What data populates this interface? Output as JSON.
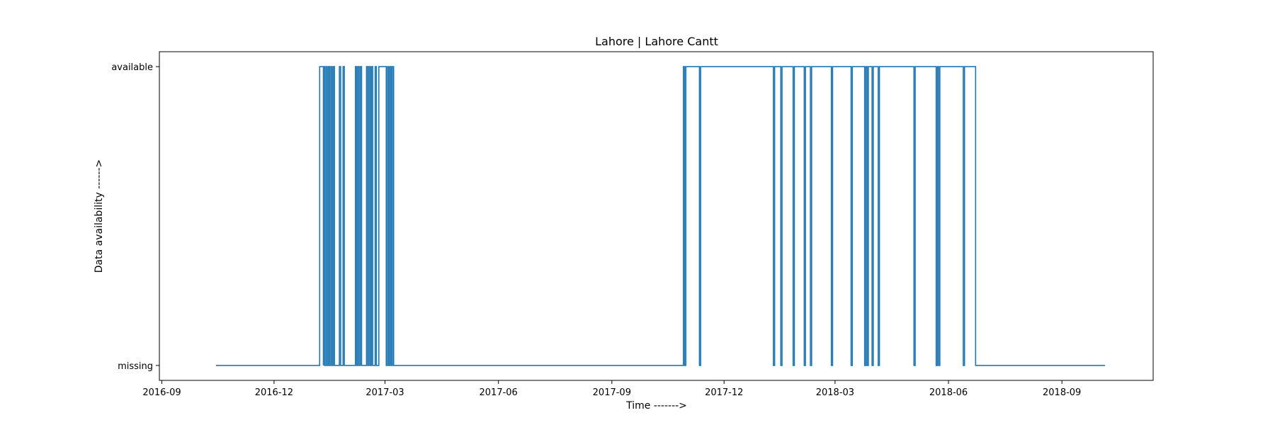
{
  "chart_data": {
    "type": "line",
    "title": "Lahore | Lahore Cantt",
    "xlabel": "Time ------->",
    "ylabel": "Data availability ------>",
    "x_ticks": [
      "2016-09-01",
      "2016-12-01",
      "2017-03-01",
      "2017-06-01",
      "2017-09-01",
      "2017-12-01",
      "2018-03-01",
      "2018-06-01",
      "2018-09-01"
    ],
    "x_tick_labels": [
      "2016-09",
      "2016-12",
      "2017-03",
      "2017-06",
      "2017-09",
      "2017-12",
      "2018-03",
      "2018-06",
      "2018-09"
    ],
    "y_ticks": [
      0,
      1
    ],
    "y_tick_labels": [
      "missing",
      "available"
    ],
    "xlim": [
      "2016-08-30",
      "2018-11-14"
    ],
    "ylim": [
      -0.05,
      1.05
    ],
    "grid": false,
    "series": [
      {
        "color": "#1f77b4",
        "step_points": [
          [
            "2016-10-15",
            0
          ],
          [
            "2017-01-07",
            1
          ],
          [
            "2017-01-10",
            0
          ],
          [
            "2017-01-10",
            1
          ],
          [
            "2017-01-11",
            0
          ],
          [
            "2017-01-12",
            1
          ],
          [
            "2017-01-13",
            0
          ],
          [
            "2017-01-14",
            1
          ],
          [
            "2017-01-15",
            0
          ],
          [
            "2017-01-16",
            1
          ],
          [
            "2017-01-17",
            0
          ],
          [
            "2017-01-18",
            1
          ],
          [
            "2017-01-19",
            0
          ],
          [
            "2017-01-23",
            1
          ],
          [
            "2017-01-24",
            0
          ],
          [
            "2017-01-26",
            1
          ],
          [
            "2017-01-27",
            0
          ],
          [
            "2017-02-05",
            1
          ],
          [
            "2017-02-06",
            0
          ],
          [
            "2017-02-07",
            1
          ],
          [
            "2017-02-08",
            0
          ],
          [
            "2017-02-09",
            1
          ],
          [
            "2017-02-10",
            0
          ],
          [
            "2017-02-14",
            1
          ],
          [
            "2017-02-15",
            0
          ],
          [
            "2017-02-16",
            1
          ],
          [
            "2017-02-17",
            0
          ],
          [
            "2017-02-18",
            1
          ],
          [
            "2017-02-19",
            0
          ],
          [
            "2017-02-21",
            1
          ],
          [
            "2017-02-22",
            0
          ],
          [
            "2017-02-24",
            1
          ],
          [
            "2017-03-02",
            0
          ],
          [
            "2017-03-03",
            1
          ],
          [
            "2017-03-04",
            0
          ],
          [
            "2017-03-05",
            1
          ],
          [
            "2017-03-06",
            0
          ],
          [
            "2017-03-07",
            1
          ],
          [
            "2017-03-08",
            0
          ],
          [
            "2017-10-29",
            1
          ],
          [
            "2017-10-30",
            0
          ],
          [
            "2017-10-31",
            1
          ],
          [
            "2017-11-11",
            0
          ],
          [
            "2017-11-12",
            1
          ],
          [
            "2018-01-10",
            0
          ],
          [
            "2018-01-11",
            1
          ],
          [
            "2018-01-16",
            0
          ],
          [
            "2018-01-17",
            1
          ],
          [
            "2018-01-26",
            0
          ],
          [
            "2018-01-27",
            1
          ],
          [
            "2018-02-04",
            0
          ],
          [
            "2018-02-05",
            1
          ],
          [
            "2018-02-09",
            0
          ],
          [
            "2018-02-10",
            1
          ],
          [
            "2018-02-26",
            0
          ],
          [
            "2018-02-27",
            1
          ],
          [
            "2018-03-14",
            0
          ],
          [
            "2018-03-15",
            1
          ],
          [
            "2018-03-25",
            0
          ],
          [
            "2018-03-26",
            1
          ],
          [
            "2018-03-27",
            0
          ],
          [
            "2018-03-28",
            1
          ],
          [
            "2018-03-31",
            0
          ],
          [
            "2018-04-01",
            1
          ],
          [
            "2018-04-05",
            0
          ],
          [
            "2018-04-06",
            1
          ],
          [
            "2018-05-04",
            0
          ],
          [
            "2018-05-05",
            1
          ],
          [
            "2018-05-22",
            0
          ],
          [
            "2018-05-23",
            1
          ],
          [
            "2018-05-24",
            0
          ],
          [
            "2018-05-25",
            1
          ],
          [
            "2018-06-13",
            0
          ],
          [
            "2018-06-14",
            1
          ],
          [
            "2018-06-23",
            0
          ],
          [
            "2018-10-06",
            0
          ]
        ]
      }
    ]
  }
}
